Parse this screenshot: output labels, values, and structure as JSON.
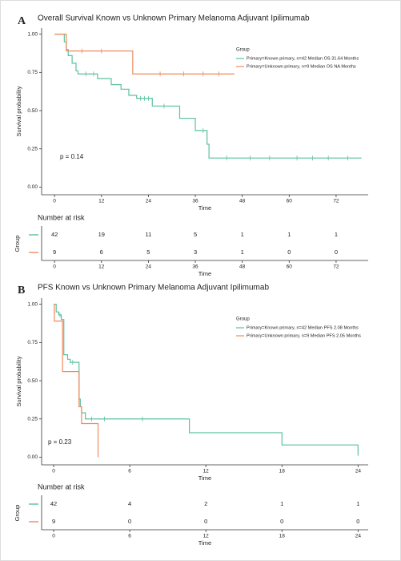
{
  "chart_data": [
    {
      "type": "step",
      "panel_label": "A",
      "title": "Overall Survival Known vs Unknown Primary Melanoma Adjuvant Ipilimumab",
      "xlabel": "Time",
      "ylabel": "Survival probability",
      "annotation": "p = 0.14",
      "legend_title": "Group",
      "xlim": [
        -3.3,
        80.2
      ],
      "xticks": [
        0,
        12,
        24,
        36,
        48,
        60,
        72
      ],
      "ylim": [
        -0.05,
        1.04
      ],
      "yticks": [
        {
          "value": 1,
          "label": "1.00"
        },
        {
          "value": 0.75,
          "label": "0.75"
        },
        {
          "value": 0.5,
          "label": "0.50"
        },
        {
          "value": 0.25,
          "label": "0.25"
        },
        {
          "value": 0,
          "label": "0.00"
        }
      ],
      "series": [
        {
          "name": "Primary=Known primary, n=42 Median OS 31.64 Months",
          "color": "#5cc19f",
          "x": [
            0,
            2.5,
            3,
            3.5,
            4.5,
            5.5,
            6,
            11,
            14.5,
            17,
            19,
            21,
            25,
            32,
            36,
            39,
            39.5,
            78.5
          ],
          "values": [
            1,
            0.95,
            0.9,
            0.86,
            0.81,
            0.76,
            0.74,
            0.71,
            0.67,
            0.64,
            0.6,
            0.58,
            0.53,
            0.45,
            0.37,
            0.28,
            0.19,
            0.19
          ],
          "censor_x": [
            8,
            10,
            22,
            23,
            24,
            28,
            38,
            44,
            50,
            55,
            62,
            66,
            70,
            75
          ],
          "at_risk": [
            42,
            19,
            11,
            5,
            1,
            1,
            1
          ]
        },
        {
          "name": "Primary=Unknown primary, n=9 Median OS NA Months",
          "color": "#f08a5d",
          "x": [
            0,
            3,
            20,
            46
          ],
          "values": [
            1,
            0.89,
            0.74,
            0.74
          ],
          "censor_x": [
            7,
            12,
            27,
            33,
            38,
            42
          ],
          "at_risk": [
            9,
            6,
            5,
            3,
            1,
            0,
            0
          ]
        }
      ],
      "risk_table": {
        "title": "Number at risk",
        "ylabel": "Group",
        "xlabel": "Time"
      }
    },
    {
      "type": "step",
      "panel_label": "B",
      "title": "PFS Known vs Unknown Primary Melanoma Adjuvant Ipilimumab",
      "xlabel": "Time",
      "ylabel": "Survival probability",
      "annotation": "p = 0.23",
      "legend_title": "Group",
      "xlim": [
        -0.95,
        24.8
      ],
      "xticks": [
        0,
        6,
        12,
        18,
        24
      ],
      "ylim": [
        -0.05,
        1.04
      ],
      "yticks": [
        {
          "value": 1,
          "label": "1.00"
        },
        {
          "value": 0.75,
          "label": "0.75"
        },
        {
          "value": 0.5,
          "label": "0.50"
        },
        {
          "value": 0.25,
          "label": "0.25"
        },
        {
          "value": 0,
          "label": "0.00"
        }
      ],
      "series": [
        {
          "name": "Primary=Known primary, n=42 Median PFS 2.08 Months",
          "color": "#5cc19f",
          "x": [
            0,
            0.2,
            0.4,
            0.6,
            0.8,
            1.1,
            1.3,
            2.0,
            2.1,
            2.2,
            2.5,
            10.7,
            18,
            24
          ],
          "values": [
            1,
            0.95,
            0.93,
            0.9,
            0.67,
            0.64,
            0.62,
            0.38,
            0.33,
            0.29,
            0.25,
            0.16,
            0.08,
            0.01
          ],
          "censor_x": [
            0.5,
            1.5,
            3,
            4,
            7
          ],
          "at_risk": [
            42,
            4,
            2,
            1,
            1
          ]
        },
        {
          "name": "Primary=Unknown primary, n=9 Median PFS 2.05 Months",
          "color": "#f08a5d",
          "x": [
            0,
            0.05,
            0.7,
            2.0,
            2.2,
            3.5
          ],
          "values": [
            1,
            0.89,
            0.56,
            0.33,
            0.22,
            0
          ],
          "at_risk": [
            9,
            0,
            0,
            0,
            0
          ]
        }
      ],
      "risk_table": {
        "title": "Number at risk",
        "ylabel": "Group",
        "xlabel": "Time"
      }
    }
  ]
}
